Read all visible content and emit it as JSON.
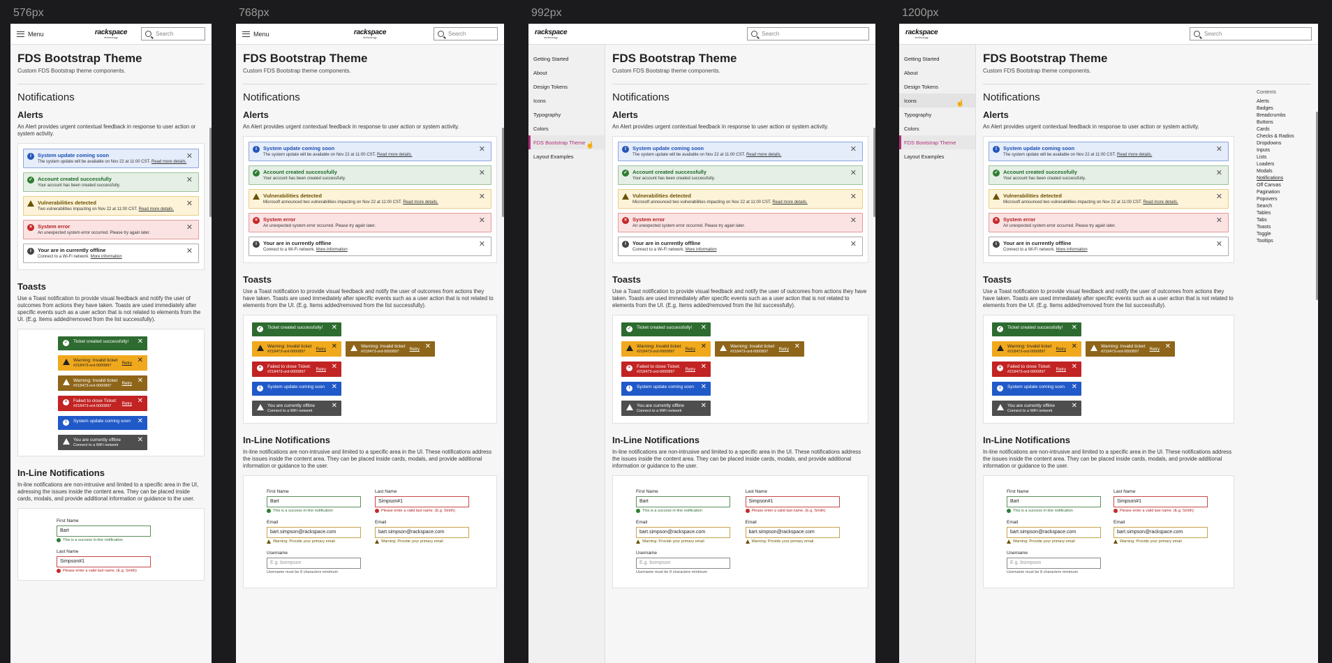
{
  "breakpoints": [
    "576px",
    "768px",
    "992px",
    "1200px"
  ],
  "header": {
    "menu_label": "Menu",
    "logo_name": "rackspace",
    "logo_tag": "technology",
    "search_placeholder": "Search"
  },
  "sidenav": {
    "items": [
      "Getting Started",
      "About",
      "Design Tokens",
      "Icons",
      "Typography",
      "Colors",
      "FDS Bootstrap Theme",
      "Layout Examples"
    ],
    "active": "FDS Bootstrap Theme"
  },
  "page": {
    "title": "FDS Bootstrap Theme",
    "subtitle": "Custom FDS Bootstrap theme components."
  },
  "notifications": {
    "heading": "Notifications",
    "alerts_heading": "Alerts",
    "alerts_desc": "An Alert provides urgent contextual feedback in response to user action or system activity.",
    "alerts": [
      {
        "type": "info",
        "title": "System update coming soon",
        "message": "The system update will be available on Nov 22 at 11:00 CST.",
        "link": "Read more details."
      },
      {
        "type": "success",
        "title": "Account created successfully",
        "message": "Your account has been created successfully.",
        "link": ""
      },
      {
        "type": "warning",
        "title": "Vulnerabilities detected",
        "message": "Microsoft announced two vulnerabilities impacting on Nov 22 at 11:00 CST.",
        "message_short": "Two vulnerabilities impacting on Nov 22 at 11:00 CST.",
        "link": "Read more details."
      },
      {
        "type": "error",
        "title": "System error",
        "message": "An unexpected system error occurred. Please try again later.",
        "link": ""
      },
      {
        "type": "offline",
        "title": "Your are in currently offline",
        "message": "Connect to a Wi-Fi network.",
        "link": "More information"
      }
    ],
    "toasts_heading": "Toasts",
    "toasts_desc": "Use a Toast notification to provide visual feedback and notify the user of outcomes from actions they have taken. Toasts are used immediately after specific events such as a user action that is not related to elements from the UI. (E.g. Items added/removed from the list successfully).",
    "toasts": {
      "success": "Ticket created successfully!",
      "warning_title": "Warning: Invalid ticket",
      "warning_ticket": "#218473-ord-0000897",
      "error_title": "Failed to close Ticket:",
      "error_ticket": "#218473-ord-0000897",
      "info": "System update coming soon",
      "offline_title": "You are currently offline",
      "offline_msg": "Connect to a WiFi network",
      "retry": "Retry"
    },
    "inline_heading": "In-Line Notifications",
    "inline_desc": "In-line notifications are non-intrusive and limited to a specific area in the UI. These notifications address the issues inside the content area. They can be placed inside cards, modals, and provide additional information or guidance to the user.",
    "inline_desc_sm": "In-line notifications are non-intrusive and limited to a specific area in the UI, adressing the issues inside the content area. They can be placed inside cards, modals, and provide additional information or guidance to the user.",
    "form": {
      "first_name_label": "First Name",
      "first_name_value": "Bart",
      "first_name_hint": "This is a success in-line notification",
      "last_name_label": "Last Name",
      "last_name_value": "Simpson#1",
      "last_name_hint": "Please enter a valid last name. (E.g. Smith)",
      "email_label": "Email",
      "email_value": "bart.simpson@rackspace.com",
      "email_hint": "Warning: Provide your primary email",
      "username_label": "Username",
      "username_placeholder": "E.g. bsimpson",
      "username_hint": "Username must be 8 characters minimum"
    }
  },
  "toc": {
    "title": "Contents",
    "items": [
      "Alerts",
      "Badges",
      "Breadcrumbs",
      "Buttons",
      "Cards",
      "Checks & Radios",
      "Dropdowns",
      "Inputs",
      "Lists",
      "Loaders",
      "Modals",
      "Notifications",
      "Off Canvas",
      "Pagination",
      "Popovers",
      "Search",
      "Tables",
      "Tabs",
      "Toasts",
      "Toggle",
      "Tooltips"
    ],
    "active": "Notifications"
  }
}
